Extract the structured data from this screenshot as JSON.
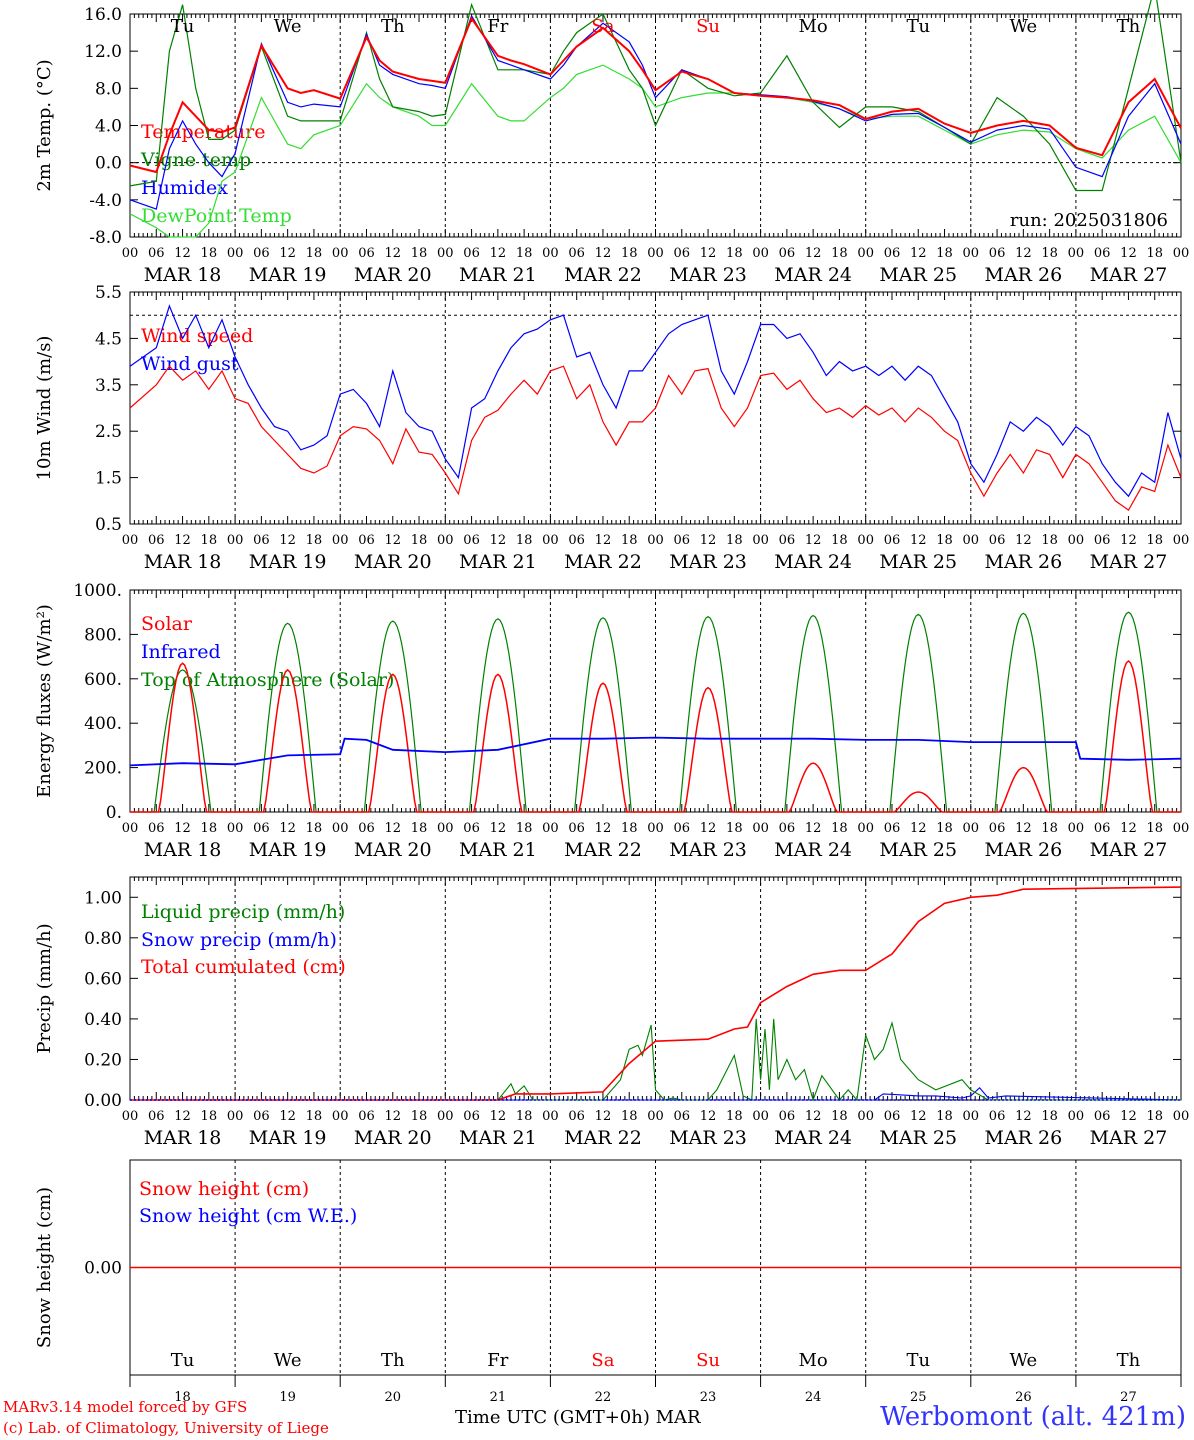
{
  "run_label": "run: 2025031806",
  "station": "Werbomont (alt. 421m)",
  "credit_line1": "MARv3.14 model forced by GFS",
  "credit_line2": "(c) Lab. of Climatology, University of Liege",
  "time_axis_label": "Time UTC (GMT+0h)",
  "month_label": "MAR",
  "weekday_labels": [
    "Tu",
    "We",
    "Th",
    "Fr",
    "Sa",
    "Su",
    "Mo",
    "Tu",
    "We",
    "Th"
  ],
  "weekend_flags": [
    false,
    false,
    false,
    false,
    true,
    true,
    false,
    false,
    false,
    false
  ],
  "date_labels": [
    "MAR 18",
    "MAR 19",
    "MAR 20",
    "MAR 21",
    "MAR 22",
    "MAR 23",
    "MAR 24",
    "MAR 25",
    "MAR 26",
    "MAR 27"
  ],
  "day_numbers": [
    "18",
    "19",
    "20",
    "21",
    "22",
    "23",
    "24",
    "25",
    "26",
    "27"
  ],
  "hour_ticks": [
    "00",
    "06",
    "12",
    "18"
  ],
  "end_hour_tick": "00",
  "colors": {
    "red": "#ff0000",
    "green": "#008000",
    "blue": "#0000ff",
    "lightgreen": "#33dd33",
    "weekend": "#ff0000",
    "station": "#3333ff"
  },
  "chart_data": [
    {
      "type": "line",
      "ylabel": "2m Temp. (°C)",
      "ylim": [
        -8,
        16
      ],
      "yticks": [
        "16.0",
        "12.0",
        "8.0",
        "4.0",
        "0.0",
        "-4.0",
        "-8.0"
      ],
      "ytick_values": [
        16,
        12,
        8,
        4,
        0,
        -4,
        -8
      ],
      "zero_line": 0,
      "x_hours": [
        0,
        6,
        9,
        12,
        15,
        18,
        21,
        24,
        30,
        36,
        39,
        42,
        48,
        54,
        57,
        60,
        66,
        69,
        72,
        78,
        84,
        87,
        90,
        96,
        99,
        102,
        108,
        114,
        117,
        120,
        126,
        132,
        138,
        144,
        150,
        156,
        162,
        168,
        174,
        180,
        186,
        192,
        198,
        204,
        210,
        216,
        222,
        228,
        234,
        240
      ],
      "series": [
        {
          "name": "Temperature",
          "color": "red",
          "values": [
            -0.3,
            -1.0,
            3.0,
            6.5,
            5.0,
            3.5,
            3.3,
            3.8,
            12.6,
            8.0,
            7.5,
            7.8,
            6.9,
            13.5,
            11.0,
            9.8,
            9.0,
            8.8,
            8.6,
            15.5,
            11.5,
            11.0,
            10.6,
            9.5,
            11.0,
            12.5,
            14.5,
            12.0,
            10.0,
            7.8,
            9.8,
            9.0,
            7.5,
            7.2,
            7.0,
            6.7,
            6.2,
            4.7,
            5.5,
            5.8,
            4.2,
            3.2,
            4.0,
            4.5,
            4.0,
            1.6,
            0.8,
            6.5,
            9.0,
            3.7
          ]
        },
        {
          "name": "Vigne temp",
          "color": "green",
          "values": [
            -2.5,
            -2.0,
            12.0,
            17.0,
            8.0,
            2.5,
            2.5,
            3.5,
            12.5,
            5.0,
            4.5,
            4.5,
            4.5,
            14.0,
            9.0,
            6.0,
            5.5,
            5.0,
            5.2,
            17.0,
            10.0,
            10.0,
            10.0,
            9.5,
            12.0,
            14.0,
            16.0,
            10.0,
            8.0,
            4.0,
            10.0,
            8.0,
            7.2,
            7.5,
            11.5,
            6.5,
            3.8,
            6.0,
            6.0,
            5.5,
            3.8,
            2.0,
            7.0,
            5.0,
            2.0,
            -3.0,
            -3.0,
            8.0,
            19.0,
            0.0
          ]
        },
        {
          "name": "Humidex",
          "color": "blue",
          "values": [
            -4.0,
            -5.0,
            1.5,
            4.5,
            2.0,
            0.0,
            -1.5,
            1.0,
            12.8,
            6.5,
            6.0,
            6.3,
            6.0,
            13.8,
            10.5,
            9.5,
            8.5,
            8.3,
            8.0,
            15.8,
            11.0,
            10.5,
            10.0,
            9.0,
            10.5,
            12.5,
            15.0,
            13.0,
            10.5,
            7.0,
            10.0,
            9.0,
            7.5,
            7.3,
            7.1,
            6.6,
            5.8,
            4.5,
            5.2,
            5.3,
            3.8,
            2.2,
            3.5,
            4.0,
            3.6,
            -0.5,
            -1.5,
            5.0,
            8.5,
            2.0
          ]
        },
        {
          "name": "DewPoint Temp",
          "color": "lightgreen",
          "values": [
            -5.5,
            -7.0,
            -8.0,
            -8.0,
            -8.0,
            -6.5,
            -2.0,
            -1.0,
            7.0,
            2.0,
            1.5,
            3.0,
            4.0,
            8.5,
            7.0,
            6.0,
            5.0,
            4.0,
            4.0,
            8.5,
            5.0,
            4.5,
            4.5,
            7.0,
            8.0,
            9.5,
            10.5,
            9.0,
            8.0,
            6.0,
            7.0,
            7.5,
            7.5,
            7.3,
            7.0,
            6.5,
            5.8,
            4.7,
            5.0,
            5.0,
            3.5,
            2.0,
            3.0,
            3.5,
            3.3,
            1.5,
            0.5,
            3.5,
            5.0,
            0.0
          ]
        }
      ]
    },
    {
      "type": "line",
      "ylabel": "10m Wind (m/s)",
      "ylim": [
        0.5,
        5.5
      ],
      "yticks": [
        "5.5",
        "4.5",
        "3.5",
        "2.5",
        "1.5",
        "0.5"
      ],
      "ytick_values": [
        5.5,
        4.5,
        3.5,
        2.5,
        1.5,
        0.5
      ],
      "ref_line": 5.0,
      "x_hours": [
        0,
        6,
        9,
        12,
        15,
        18,
        21,
        24,
        27,
        30,
        33,
        36,
        39,
        42,
        45,
        48,
        51,
        54,
        57,
        60,
        63,
        66,
        69,
        72,
        75,
        78,
        81,
        84,
        87,
        90,
        93,
        96,
        99,
        102,
        105,
        108,
        111,
        114,
        117,
        120,
        123,
        126,
        129,
        132,
        135,
        138,
        141,
        144,
        147,
        150,
        153,
        156,
        159,
        162,
        165,
        168,
        171,
        174,
        177,
        180,
        183,
        186,
        189,
        192,
        195,
        198,
        201,
        204,
        207,
        210,
        213,
        216,
        219,
        222,
        225,
        228,
        231,
        234,
        237,
        240
      ],
      "series": [
        {
          "name": "Wind speed",
          "color": "red",
          "values": [
            3.0,
            3.5,
            3.9,
            3.6,
            3.8,
            3.4,
            3.8,
            3.2,
            3.1,
            2.6,
            2.3,
            2.0,
            1.7,
            1.6,
            1.75,
            2.4,
            2.6,
            2.55,
            2.3,
            1.8,
            2.55,
            2.05,
            2.0,
            1.6,
            1.15,
            2.3,
            2.8,
            2.95,
            3.3,
            3.6,
            3.3,
            3.8,
            3.9,
            3.2,
            3.5,
            2.7,
            2.2,
            2.7,
            2.7,
            3.0,
            3.7,
            3.3,
            3.8,
            3.85,
            3.0,
            2.6,
            3.0,
            3.7,
            3.75,
            3.4,
            3.6,
            3.2,
            2.9,
            3.0,
            2.8,
            3.05,
            2.85,
            3.0,
            2.7,
            3.0,
            2.8,
            2.5,
            2.3,
            1.6,
            1.1,
            1.6,
            2.0,
            1.6,
            2.1,
            2.0,
            1.5,
            2.0,
            1.8,
            1.4,
            1.0,
            0.8,
            1.3,
            1.2,
            2.2,
            1.5
          ]
        },
        {
          "name": "Wind gust",
          "color": "blue",
          "values": [
            3.9,
            4.3,
            5.2,
            4.5,
            5.0,
            4.3,
            4.9,
            4.1,
            3.5,
            3.0,
            2.6,
            2.5,
            2.1,
            2.2,
            2.4,
            3.3,
            3.4,
            3.1,
            2.6,
            3.8,
            2.9,
            2.6,
            2.5,
            1.9,
            1.5,
            3.0,
            3.2,
            3.8,
            4.3,
            4.6,
            4.7,
            4.9,
            5.0,
            4.1,
            4.2,
            3.5,
            3.0,
            3.8,
            3.8,
            4.2,
            4.6,
            4.8,
            4.9,
            5.0,
            3.8,
            3.3,
            4.0,
            4.8,
            4.8,
            4.5,
            4.6,
            4.2,
            3.7,
            4.0,
            3.8,
            3.9,
            3.7,
            3.9,
            3.6,
            3.9,
            3.7,
            3.2,
            2.7,
            1.8,
            1.4,
            2.0,
            2.7,
            2.5,
            2.8,
            2.6,
            2.2,
            2.6,
            2.4,
            1.8,
            1.4,
            1.1,
            1.6,
            1.4,
            2.9,
            1.9
          ]
        }
      ]
    },
    {
      "type": "line",
      "ylabel": "Energy fluxes (W/m²)",
      "ylim": [
        0,
        1000
      ],
      "yticks": [
        "1000.",
        "800.",
        "600.",
        "400.",
        "200.",
        "0."
      ],
      "ytick_values": [
        1000,
        800,
        600,
        400,
        200,
        0
      ],
      "toa_peaks": [
        640,
        850,
        860,
        870,
        875,
        880,
        885,
        890,
        895,
        900
      ],
      "solar_peaks": [
        670,
        640,
        620,
        620,
        580,
        560,
        220,
        90,
        200,
        680
      ],
      "infrared_x": [
        0,
        12,
        24,
        36,
        48,
        49,
        54,
        60,
        72,
        84,
        96,
        108,
        120,
        132,
        144,
        156,
        168,
        180,
        192,
        216,
        217,
        228,
        240
      ],
      "infrared_values": [
        210,
        220,
        215,
        255,
        260,
        330,
        325,
        280,
        270,
        280,
        330,
        330,
        335,
        330,
        330,
        330,
        325,
        325,
        315,
        315,
        240,
        235,
        240
      ],
      "series": [
        {
          "name": "Solar",
          "color": "red",
          "values": [
            670,
            640,
            620,
            620,
            580,
            560,
            220,
            90,
            200,
            680
          ]
        },
        {
          "name": "Infrared",
          "color": "blue",
          "values": [
            210,
            220,
            215,
            255,
            260,
            330,
            325,
            280,
            270,
            280,
            330,
            330,
            335,
            330,
            330,
            330,
            325,
            325,
            315,
            315,
            240,
            235,
            240
          ]
        },
        {
          "name": "Top of Atmosphere (Solar)",
          "color": "green",
          "values": [
            640,
            850,
            860,
            870,
            875,
            880,
            885,
            890,
            895,
            900
          ]
        }
      ]
    },
    {
      "type": "line",
      "ylabel": "Precip (mm/h)",
      "ylim": [
        0,
        1.1
      ],
      "yticks": [
        "1.00",
        "0.80",
        "0.60",
        "0.40",
        "0.20",
        "0.00"
      ],
      "ytick_values": [
        1.0,
        0.8,
        0.6,
        0.4,
        0.2,
        0.0
      ],
      "series": [
        {
          "name": "Liquid precip (mm/h)",
          "color": "green",
          "x_hours": [
            0,
            84,
            87,
            88,
            90,
            92,
            96,
            108,
            112,
            114,
            116,
            117,
            119,
            120,
            122,
            124,
            126,
            132,
            134,
            138,
            140,
            142,
            143,
            144,
            145,
            146,
            147,
            148,
            150,
            152,
            154,
            156,
            158,
            162,
            164,
            166,
            168,
            170,
            172,
            174,
            176,
            178,
            180,
            184,
            190,
            192,
            196,
            200,
            240
          ],
          "values": [
            0,
            0,
            0.08,
            0.03,
            0.07,
            0,
            0,
            0,
            0.1,
            0.25,
            0.27,
            0.22,
            0.37,
            0.05,
            0,
            0.01,
            0,
            0,
            0.05,
            0.22,
            0.02,
            0,
            0.4,
            0.1,
            0.35,
            0.05,
            0.4,
            0.1,
            0.2,
            0.1,
            0.15,
            0,
            0.12,
            0,
            0.05,
            0,
            0.32,
            0.2,
            0.25,
            0.38,
            0.2,
            0.15,
            0.1,
            0.05,
            0.1,
            0.05,
            0,
            0,
            0
          ]
        },
        {
          "name": "Snow precip (mm/h)",
          "color": "blue",
          "x_hours": [
            0,
            170,
            172,
            180,
            184,
            190,
            192,
            194,
            196,
            200,
            240
          ],
          "values": [
            0,
            0,
            0.03,
            0.02,
            0.02,
            0.01,
            0.02,
            0.06,
            0.01,
            0.02,
            0
          ]
        },
        {
          "name": "Total cumulated (cm)",
          "color": "red",
          "x_hours": [
            0,
            84,
            88,
            96,
            108,
            114,
            120,
            132,
            138,
            141,
            144,
            147,
            150,
            156,
            162,
            168,
            174,
            180,
            186,
            192,
            198,
            204,
            240
          ],
          "values": [
            0,
            0,
            0.03,
            0.03,
            0.04,
            0.18,
            0.29,
            0.3,
            0.35,
            0.36,
            0.48,
            0.52,
            0.56,
            0.62,
            0.64,
            0.64,
            0.72,
            0.88,
            0.97,
            1.0,
            1.01,
            1.04,
            1.05
          ]
        }
      ]
    },
    {
      "type": "line",
      "ylabel": "Snow height (cm)",
      "ylim": [
        -1,
        1
      ],
      "yticks": [
        "0.00"
      ],
      "ytick_values": [
        0
      ],
      "series": [
        {
          "name": "Snow height (cm)",
          "color": "red",
          "values": [
            0,
            0
          ]
        },
        {
          "name": "Snow height (cm W.E.)",
          "color": "blue",
          "values": [
            0,
            0
          ]
        }
      ]
    }
  ]
}
